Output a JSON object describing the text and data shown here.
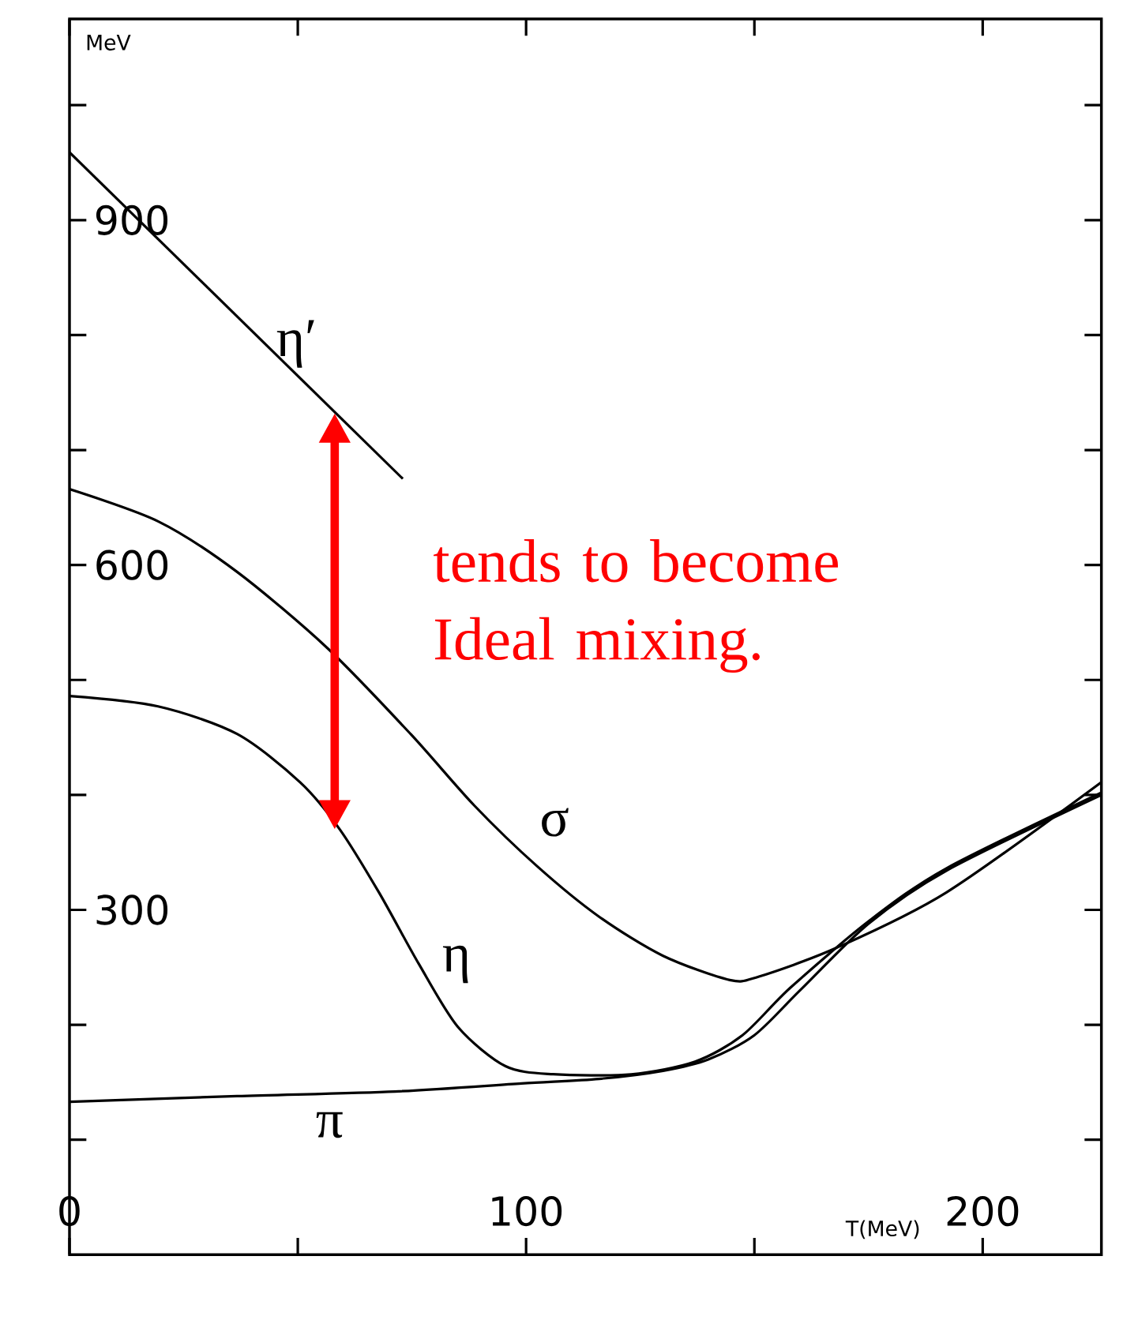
{
  "chart_data": {
    "type": "line",
    "xlabel": "T(MeV)",
    "ylabel": "MeV",
    "xlim": [
      0,
      226
    ],
    "ylim": [
      0,
      1075
    ],
    "xticks": [
      0,
      {
        "value": 50,
        "label": null
      },
      100,
      {
        "value": 150,
        "label": null
      },
      200
    ],
    "yticks": [
      {
        "value": 100,
        "label": null
      },
      {
        "value": 200,
        "label": null
      },
      300,
      {
        "value": 400,
        "label": null
      },
      {
        "value": 500,
        "label": null
      },
      600,
      {
        "value": 700,
        "label": null
      },
      {
        "value": 800,
        "label": null
      },
      900,
      {
        "value": 1000,
        "label": null
      }
    ],
    "series": [
      {
        "name": "η′",
        "color": "#000000",
        "x": [
          0,
          73
        ],
        "values": [
          959,
          675
        ]
      },
      {
        "name": "σ",
        "color": "#000000",
        "x": [
          0,
          19.4,
          36.7,
          56.4,
          74.7,
          88.6,
          102.4,
          116,
          130,
          144.6,
          151,
          168,
          192,
          226
        ],
        "values": [
          666,
          638,
          594,
          528,
          453,
          391,
          338,
          294,
          260,
          239,
          242,
          267,
          315,
          411
        ]
      },
      {
        "name": "η",
        "color": "#000000",
        "x": [
          0,
          19.4,
          36.7,
          50.5,
          59.2,
          67.8,
          76.5,
          85.1,
          95.5,
          105.9,
          123,
          137,
          147.4,
          157.8,
          175,
          192,
          226
        ],
        "values": [
          486,
          477,
          453,
          411,
          370,
          315,
          253,
          198,
          164,
          157,
          157,
          168,
          191,
          232,
          290,
          336,
          402
        ]
      },
      {
        "name": "π",
        "color": "#000000",
        "x": [
          0,
          36.7,
          71.3,
          99,
          116,
          130,
          140,
          150,
          160,
          175,
          192,
          226
        ],
        "values": [
          133,
          138,
          142,
          149,
          153,
          160,
          170,
          191,
          230,
          288,
          334,
          400
        ]
      }
    ],
    "annotations": [
      "tends to become Ideal mixing."
    ],
    "legend": false,
    "grid": false,
    "marker": "none",
    "line_style": "solid"
  }
}
